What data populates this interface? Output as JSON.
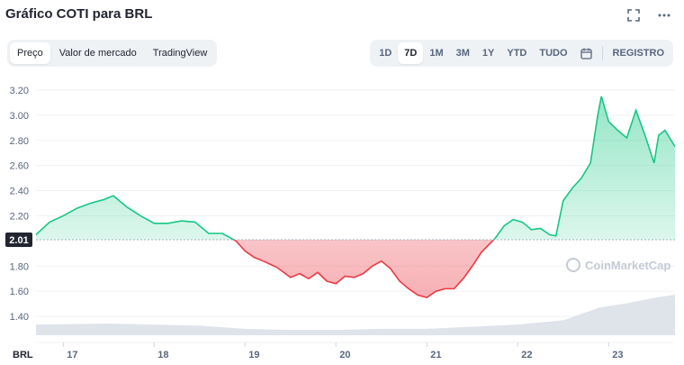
{
  "header": {
    "title": "Gráfico COTI para BRL",
    "icons": [
      "expand-icon",
      "more-icon"
    ]
  },
  "tabs_left": [
    {
      "label": "Preço",
      "active": true
    },
    {
      "label": "Valor de mercado",
      "active": false
    },
    {
      "label": "TradingView",
      "active": false
    }
  ],
  "tabs_right": [
    {
      "label": "1D",
      "active": false
    },
    {
      "label": "7D",
      "active": true
    },
    {
      "label": "1M",
      "active": false
    },
    {
      "label": "3M",
      "active": false
    },
    {
      "label": "1Y",
      "active": false
    },
    {
      "label": "YTD",
      "active": false
    },
    {
      "label": "TUDO",
      "active": false
    }
  ],
  "calendar_icon": "calendar-icon",
  "log_button": "REGISTRO",
  "watermark": "CoinMarketCap",
  "colors": {
    "up": "#16c784",
    "down": "#ea3943",
    "baseline": "#222531",
    "volume": "#dfe3ea"
  },
  "chart_data": {
    "type": "area",
    "ylim": [
      1.25,
      3.3
    ],
    "yticks": [
      "3.20",
      "3.00",
      "2.80",
      "2.60",
      "2.40",
      "2.20",
      "1.80",
      "1.60",
      "1.40"
    ],
    "baseline": 2.01,
    "baseline_label": "2.01",
    "x_unit_label": "BRL",
    "xticks": [
      "17",
      "18",
      "19",
      "20",
      "21",
      "22",
      "23"
    ],
    "xlim": [
      16.7,
      23.73
    ],
    "points": [
      [
        16.7,
        2.05
      ],
      [
        16.85,
        2.15
      ],
      [
        17.0,
        2.2
      ],
      [
        17.15,
        2.26
      ],
      [
        17.3,
        2.3
      ],
      [
        17.45,
        2.33
      ],
      [
        17.55,
        2.36
      ],
      [
        17.7,
        2.27
      ],
      [
        17.85,
        2.2
      ],
      [
        18.0,
        2.14
      ],
      [
        18.15,
        2.14
      ],
      [
        18.3,
        2.16
      ],
      [
        18.45,
        2.15
      ],
      [
        18.6,
        2.06
      ],
      [
        18.75,
        2.06
      ],
      [
        18.9,
        2.0
      ],
      [
        19.0,
        1.92
      ],
      [
        19.1,
        1.87
      ],
      [
        19.2,
        1.84
      ],
      [
        19.35,
        1.79
      ],
      [
        19.5,
        1.71
      ],
      [
        19.6,
        1.74
      ],
      [
        19.7,
        1.7
      ],
      [
        19.8,
        1.75
      ],
      [
        19.9,
        1.68
      ],
      [
        20.0,
        1.66
      ],
      [
        20.1,
        1.72
      ],
      [
        20.2,
        1.71
      ],
      [
        20.3,
        1.74
      ],
      [
        20.4,
        1.8
      ],
      [
        20.5,
        1.84
      ],
      [
        20.6,
        1.78
      ],
      [
        20.7,
        1.68
      ],
      [
        20.8,
        1.62
      ],
      [
        20.9,
        1.57
      ],
      [
        21.0,
        1.55
      ],
      [
        21.1,
        1.6
      ],
      [
        21.2,
        1.62
      ],
      [
        21.3,
        1.62
      ],
      [
        21.4,
        1.7
      ],
      [
        21.5,
        1.8
      ],
      [
        21.6,
        1.91
      ],
      [
        21.75,
        2.02
      ],
      [
        21.85,
        2.12
      ],
      [
        21.95,
        2.17
      ],
      [
        22.05,
        2.15
      ],
      [
        22.15,
        2.09
      ],
      [
        22.25,
        2.1
      ],
      [
        22.35,
        2.05
      ],
      [
        22.42,
        2.04
      ],
      [
        22.5,
        2.32
      ],
      [
        22.6,
        2.42
      ],
      [
        22.7,
        2.5
      ],
      [
        22.8,
        2.62
      ],
      [
        22.88,
        3.0
      ],
      [
        22.92,
        3.15
      ],
      [
        23.0,
        2.95
      ],
      [
        23.1,
        2.88
      ],
      [
        23.2,
        2.82
      ],
      [
        23.3,
        3.04
      ],
      [
        23.4,
        2.84
      ],
      [
        23.5,
        2.62
      ],
      [
        23.55,
        2.84
      ],
      [
        23.62,
        2.88
      ],
      [
        23.73,
        2.75
      ]
    ],
    "volume": [
      [
        16.7,
        0.1
      ],
      [
        17.5,
        0.11
      ],
      [
        18.5,
        0.09
      ],
      [
        19.0,
        0.06
      ],
      [
        19.5,
        0.05
      ],
      [
        20.0,
        0.05
      ],
      [
        20.5,
        0.06
      ],
      [
        21.0,
        0.06
      ],
      [
        21.5,
        0.08
      ],
      [
        22.0,
        0.1
      ],
      [
        22.5,
        0.14
      ],
      [
        22.9,
        0.26
      ],
      [
        23.2,
        0.3
      ],
      [
        23.5,
        0.35
      ],
      [
        23.73,
        0.38
      ]
    ]
  }
}
